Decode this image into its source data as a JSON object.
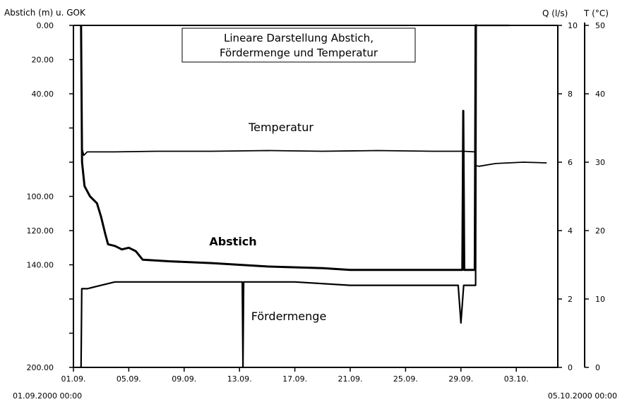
{
  "chart_data": {
    "type": "line",
    "title_lines": [
      "Lineare Darstellung Abstich,",
      "Fördermenge und Temperatur"
    ],
    "axis_left_label": "Abstich (m) u. GOK",
    "axis_q_label": "Q (l/s)",
    "axis_t_label": "T (°C)",
    "start_label": "01.09.2000 00:00",
    "end_label": "05.10.2000 00:00",
    "x_ticks": [
      "01.09.",
      "05.09.",
      "09.09.",
      "13.09.",
      "17.09.",
      "21.09.",
      "25.09.",
      "29.09.",
      "03.10."
    ],
    "x_tick_days": [
      0,
      4,
      8,
      12,
      16,
      20,
      24,
      28,
      32
    ],
    "xlim_days": [
      0,
      35
    ],
    "left_axis": {
      "ticks": [
        "0.00",
        "20.00",
        "40.00",
        "",
        "",
        "100.00",
        "120.00",
        "140.00",
        "",
        "",
        "200.00"
      ],
      "values": [
        0,
        20,
        40,
        60,
        80,
        100,
        120,
        140,
        160,
        180,
        200
      ],
      "ylim": [
        200,
        0
      ]
    },
    "q_axis": {
      "ticks": [
        "10",
        "8",
        "6",
        "4",
        "2",
        "0"
      ],
      "values": [
        10,
        8,
        6,
        4,
        2,
        0
      ],
      "ylim": [
        0,
        10
      ]
    },
    "t_axis": {
      "ticks": [
        "50",
        "40",
        "30",
        "20",
        "10",
        "0"
      ],
      "values": [
        50,
        40,
        30,
        20,
        10,
        0
      ],
      "ylim": [
        0,
        50
      ]
    },
    "series": [
      {
        "name": "Temperatur",
        "axis": "t",
        "x": [
          0.55,
          0.62,
          0.75,
          1.0,
          3.0,
          6.0,
          10.0,
          14.0,
          18.0,
          22.0,
          26.0,
          28.2,
          29.0,
          29.06,
          29.3,
          30.5,
          32.5,
          34.2
        ],
        "y": [
          50,
          32,
          31,
          31.5,
          31.5,
          31.6,
          31.6,
          31.7,
          31.6,
          31.7,
          31.6,
          31.6,
          31.5,
          29.5,
          29.4,
          29.8,
          30.0,
          29.9
        ]
      },
      {
        "name": "Abstich",
        "axis": "left",
        "x": [
          0.55,
          0.62,
          0.8,
          1.2,
          1.7,
          2.0,
          2.3,
          2.5,
          3.0,
          3.5,
          4.0,
          4.5,
          5.0,
          7.0,
          10.0,
          14.0,
          18.0,
          20.0,
          22.0,
          26.0,
          28.0,
          28.1,
          28.17,
          28.24,
          29.0,
          29.06,
          29.15
        ],
        "y": [
          0,
          80,
          94,
          100,
          104,
          112,
          122,
          128,
          129,
          131,
          130,
          132,
          137,
          138,
          139,
          141,
          142,
          143,
          143,
          143,
          143,
          143,
          50,
          143,
          143,
          0,
          0
        ]
      },
      {
        "name": "Fördermenge",
        "axis": "q",
        "x": [
          0.55,
          0.6,
          0.7,
          1.0,
          2.0,
          3.0,
          4.0,
          4.5,
          8.0,
          12.2,
          12.25,
          12.3,
          12.35,
          16.0,
          20.0,
          24.0,
          27.8,
          28.0,
          28.2,
          28.4,
          29.06,
          29.1,
          29.5,
          30.5,
          31.5
        ],
        "y": [
          0,
          2.3,
          2.3,
          2.3,
          2.4,
          2.5,
          2.5,
          2.5,
          2.5,
          2.5,
          0,
          2.5,
          2.5,
          2.5,
          2.4,
          2.4,
          2.4,
          1.3,
          2.4,
          2.4,
          2.4,
          10,
          10,
          10,
          10
        ]
      }
    ]
  }
}
